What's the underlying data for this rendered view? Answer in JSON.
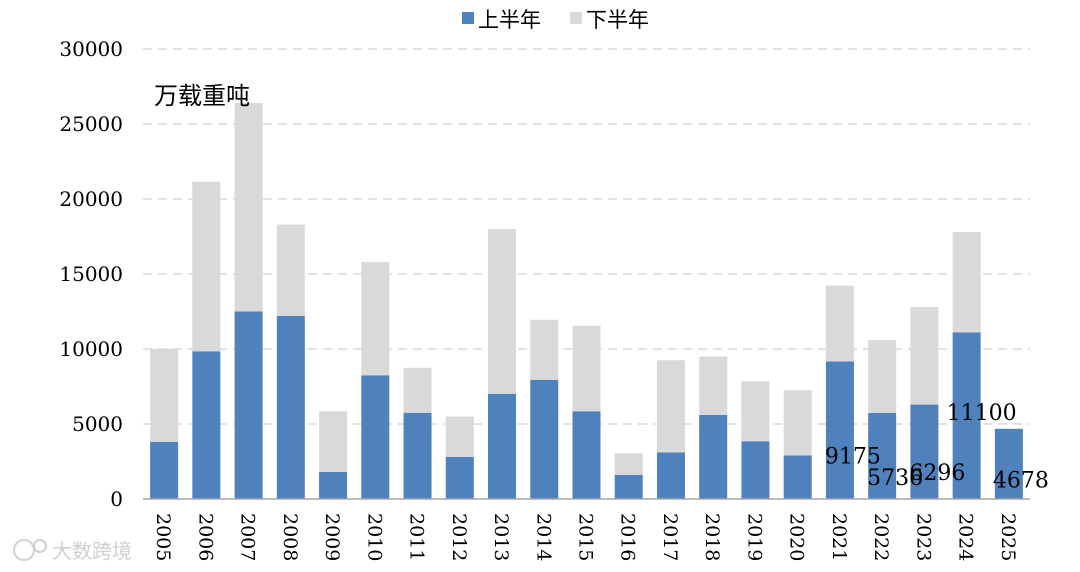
{
  "chart_data": {
    "type": "bar",
    "stacked": true,
    "unit_label": "万载重吨",
    "categories": [
      "2005",
      "2006",
      "2007",
      "2008",
      "2009",
      "2010",
      "2011",
      "2012",
      "2013",
      "2014",
      "2015",
      "2016",
      "2017",
      "2018",
      "2019",
      "2020",
      "2021",
      "2022",
      "2023",
      "2024",
      "2025"
    ],
    "series": [
      {
        "name": "上半年",
        "color": "#4f81bd",
        "values": [
          3800,
          9850,
          12500,
          12200,
          1800,
          8250,
          5750,
          2800,
          7000,
          7950,
          5850,
          1600,
          3100,
          5600,
          3850,
          2900,
          9175,
          5736,
          6296,
          11100,
          4678
        ]
      },
      {
        "name": "下半年",
        "color": "#d9d9d9",
        "values": [
          6200,
          11300,
          13900,
          6100,
          4050,
          7550,
          3000,
          2700,
          11000,
          4000,
          5700,
          1450,
          6150,
          3900,
          4000,
          4350,
          5050,
          4864,
          6504,
          6700,
          0
        ]
      }
    ],
    "data_labels": [
      {
        "category": "2021",
        "series": "上半年",
        "text": "9175"
      },
      {
        "category": "2022",
        "series": "上半年",
        "text": "5736"
      },
      {
        "category": "2023",
        "series": "上半年",
        "text": "6296"
      },
      {
        "category": "2024",
        "series": "上半年",
        "text": "11100"
      },
      {
        "category": "2025",
        "series": "上半年",
        "text": "4678"
      }
    ],
    "ylim": [
      0,
      30000
    ],
    "yticks": [
      0,
      5000,
      10000,
      15000,
      20000,
      25000,
      30000
    ],
    "grid": true,
    "legend": "top-center"
  },
  "watermark": "大数跨境"
}
